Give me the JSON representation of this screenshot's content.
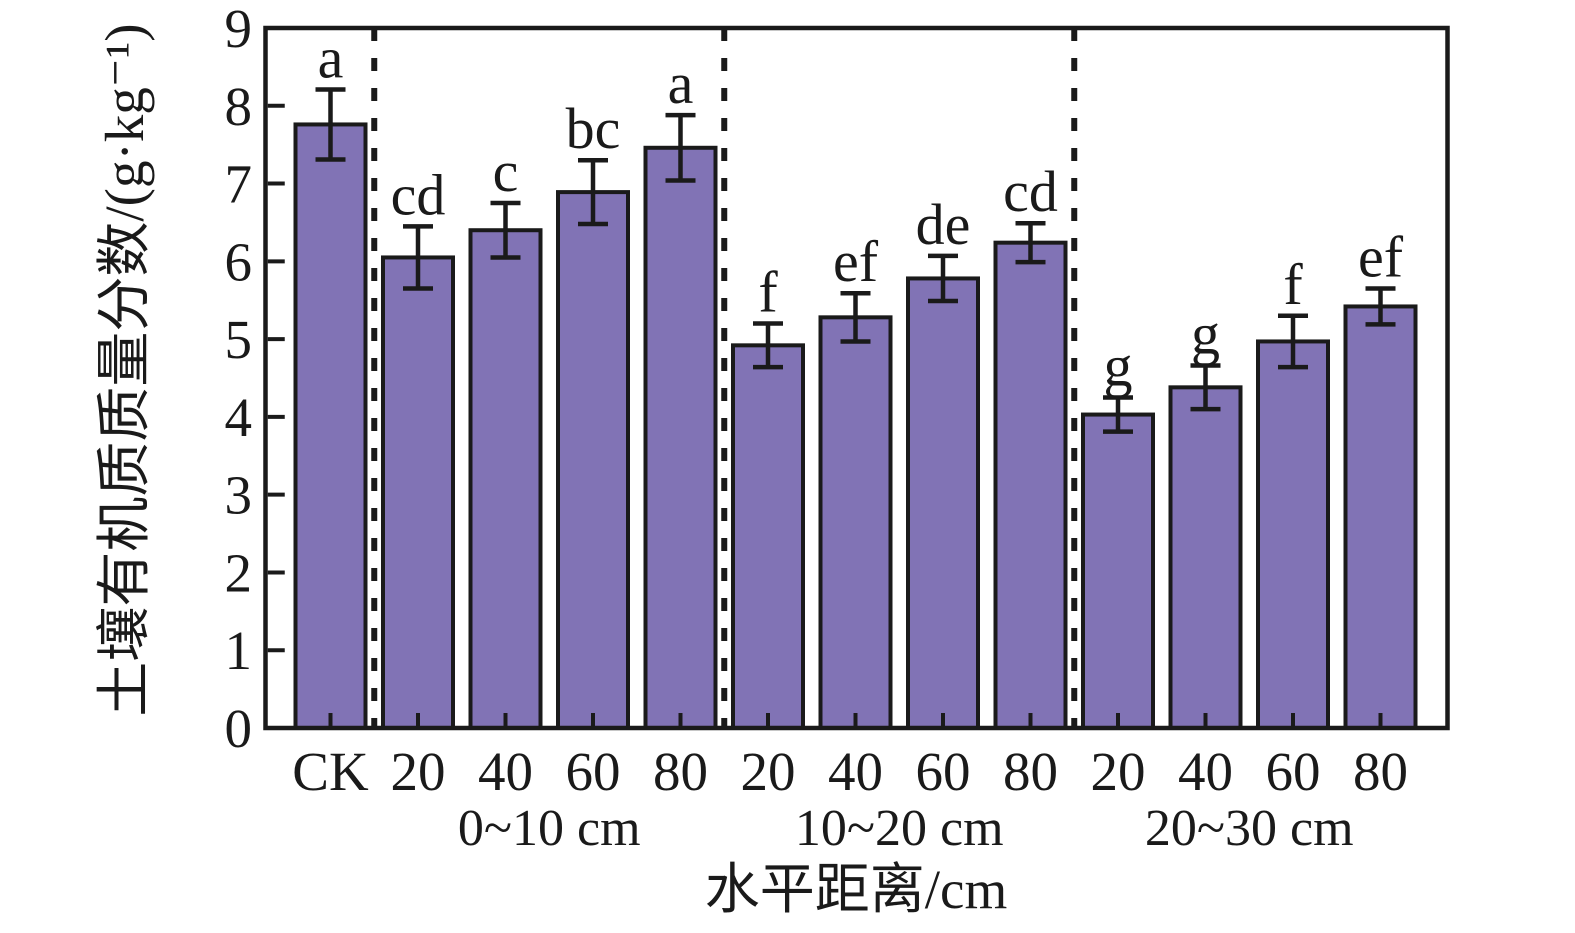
{
  "page": {
    "background": "#ffffff"
  },
  "chart_data": {
    "type": "bar",
    "title": "",
    "ylabel": "土壤有机质质量分数/(g·kg⁻¹)",
    "xlabel": "水平距离/cm",
    "ylim": [
      0,
      9
    ],
    "yticks": [
      0,
      1,
      2,
      3,
      4,
      5,
      6,
      7,
      8,
      9
    ],
    "grid": false,
    "legend_position": "none",
    "bar_fill": "#8173B5",
    "bar_stroke": "#1A1A1A",
    "axis_color": "#1A1A1A",
    "error_bar_color": "#1A1A1A",
    "separator_style": "dashed",
    "groups": [
      {
        "label": "",
        "bars": [
          {
            "category": "CK",
            "value": 7.76,
            "error": 0.45,
            "sig_letter": "a"
          }
        ]
      },
      {
        "label": "0~10 cm",
        "bars": [
          {
            "category": "20",
            "value": 6.05,
            "error": 0.4,
            "sig_letter": "cd"
          },
          {
            "category": "40",
            "value": 6.4,
            "error": 0.35,
            "sig_letter": "c"
          },
          {
            "category": "60",
            "value": 6.89,
            "error": 0.41,
            "sig_letter": "bc"
          },
          {
            "category": "80",
            "value": 7.46,
            "error": 0.42,
            "sig_letter": "a"
          }
        ]
      },
      {
        "label": "10~20 cm",
        "bars": [
          {
            "category": "20",
            "value": 4.92,
            "error": 0.28,
            "sig_letter": "f"
          },
          {
            "category": "40",
            "value": 5.28,
            "error": 0.31,
            "sig_letter": "ef"
          },
          {
            "category": "60",
            "value": 5.78,
            "error": 0.29,
            "sig_letter": "de"
          },
          {
            "category": "80",
            "value": 6.24,
            "error": 0.25,
            "sig_letter": "cd"
          }
        ]
      },
      {
        "label": "20~30 cm",
        "bars": [
          {
            "category": "20",
            "value": 4.03,
            "error": 0.22,
            "sig_letter": "g"
          },
          {
            "category": "40",
            "value": 4.38,
            "error": 0.28,
            "sig_letter": "g"
          },
          {
            "category": "60",
            "value": 4.97,
            "error": 0.33,
            "sig_letter": "f"
          },
          {
            "category": "80",
            "value": 5.42,
            "error": 0.23,
            "sig_letter": "ef"
          }
        ]
      }
    ]
  }
}
